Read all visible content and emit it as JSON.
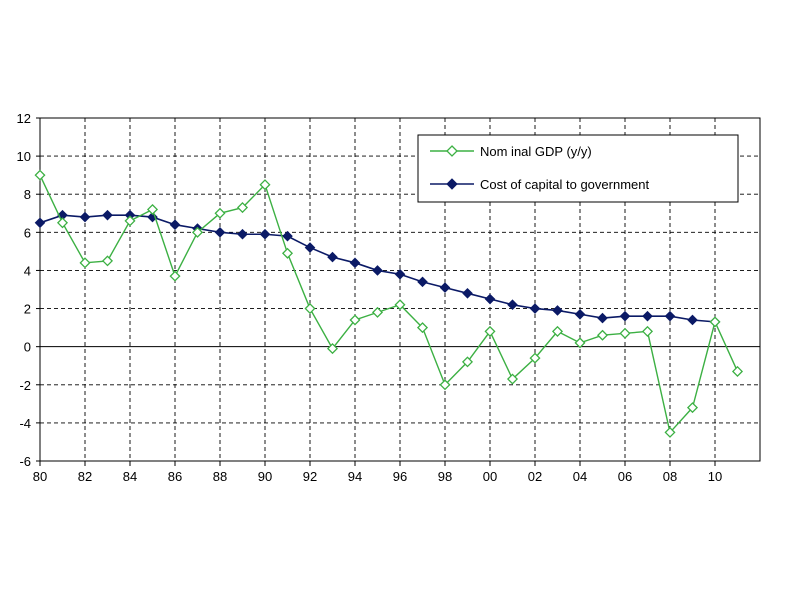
{
  "chart_data": {
    "type": "line",
    "title": "",
    "xlabel": "",
    "ylabel": "",
    "xlim": [
      1980,
      2012
    ],
    "ylim": [
      -6,
      12
    ],
    "x_ticks": [
      1980,
      1982,
      1984,
      1986,
      1988,
      1990,
      1992,
      1994,
      1996,
      1998,
      2000,
      2002,
      2004,
      2006,
      2008,
      2010
    ],
    "x_tick_labels": [
      "80",
      "82",
      "84",
      "86",
      "88",
      "90",
      "92",
      "94",
      "96",
      "98",
      "00",
      "02",
      "04",
      "06",
      "08",
      "10"
    ],
    "y_ticks": [
      -6,
      -4,
      -2,
      0,
      2,
      4,
      6,
      8,
      10,
      12
    ],
    "y_tick_labels": [
      "-6",
      "-4",
      "-2",
      "0",
      "2",
      "4",
      "6",
      "8",
      "10",
      "12"
    ],
    "grid": true,
    "legend_position": "top-right",
    "series": [
      {
        "name": "Nom inal GDP (y/y)",
        "color": "#3cb043",
        "marker": "open-diamond",
        "x": [
          1980,
          1981,
          1982,
          1983,
          1984,
          1985,
          1986,
          1987,
          1988,
          1989,
          1990,
          1991,
          1992,
          1993,
          1994,
          1995,
          1996,
          1997,
          1998,
          1999,
          2000,
          2001,
          2002,
          2003,
          2004,
          2005,
          2006,
          2007,
          2008,
          2009,
          2010,
          2011
        ],
        "values": [
          9.0,
          6.5,
          4.4,
          4.5,
          6.6,
          7.2,
          3.7,
          6.0,
          7.0,
          7.3,
          8.5,
          4.9,
          2.0,
          -0.1,
          1.4,
          1.8,
          2.2,
          1.0,
          -2.0,
          -0.8,
          0.8,
          -1.7,
          -0.6,
          0.8,
          0.2,
          0.6,
          0.7,
          0.8,
          -4.5,
          -3.2,
          1.3,
          -1.3
        ]
      },
      {
        "name": "Cost of capital to government",
        "color": "#0b1a66",
        "marker": "filled-diamond",
        "x": [
          1980,
          1981,
          1982,
          1983,
          1984,
          1985,
          1986,
          1987,
          1988,
          1989,
          1990,
          1991,
          1992,
          1993,
          1994,
          1995,
          1996,
          1997,
          1998,
          1999,
          2000,
          2001,
          2002,
          2003,
          2004,
          2005,
          2006,
          2007,
          2008,
          2009,
          2010
        ],
        "values": [
          6.5,
          6.9,
          6.8,
          6.9,
          6.9,
          6.8,
          6.4,
          6.2,
          6.0,
          5.9,
          5.9,
          5.8,
          5.2,
          4.7,
          4.4,
          4.0,
          3.8,
          3.4,
          3.1,
          2.8,
          2.5,
          2.2,
          2.0,
          1.9,
          1.7,
          1.5,
          1.6,
          1.6,
          1.6,
          1.4,
          1.3
        ]
      }
    ]
  }
}
